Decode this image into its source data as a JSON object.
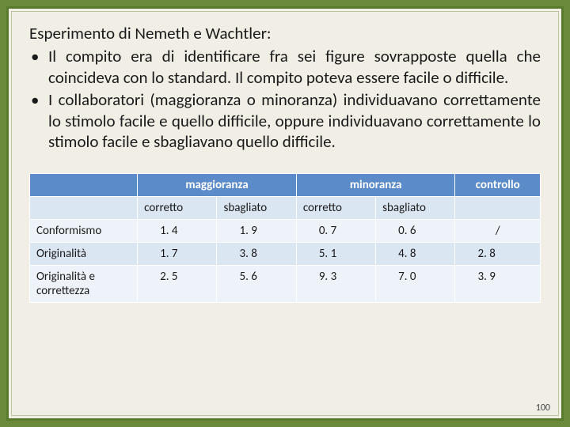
{
  "heading": "Esperimento di Nemeth e Wachtler:",
  "bullets": [
    "Il compito era di identificare fra sei figure sovrapposte quella che coincideva con lo standard. Il compito poteva essere facile o difficile.",
    "I collaboratori (maggioranza o minoranza) individuavano correttamente lo stimolo facile e quello difficile, oppure individuavano correttamente lo stimolo facile e sbagliavano quello difficile."
  ],
  "table": {
    "group_headers": [
      "maggioranza",
      "minoranza",
      "controllo"
    ],
    "sub_headers": [
      "corretto",
      "sbagliato",
      "corretto",
      "sbagliato"
    ],
    "rows": [
      {
        "label": "Conformismo",
        "vals": [
          "1. 4",
          "1. 9",
          "0. 7",
          "0. 6",
          "/"
        ]
      },
      {
        "label": "Originalità",
        "vals": [
          "1. 7",
          "3. 8",
          "5. 1",
          "4. 8",
          "2. 8"
        ]
      },
      {
        "label": "Originalità e correttezza",
        "vals": [
          "2. 5",
          "5. 6",
          "9. 3",
          "7. 0",
          "3. 9"
        ]
      }
    ]
  },
  "page_number": "100",
  "colors": {
    "outer_bg": "#6c8a3c",
    "slide_bg": "#f1eee5",
    "border": "#5a7a2e",
    "header_bg": "#5b8bc9",
    "row_alt1": "#eef3f9",
    "row_alt2": "#dbe6f3"
  }
}
